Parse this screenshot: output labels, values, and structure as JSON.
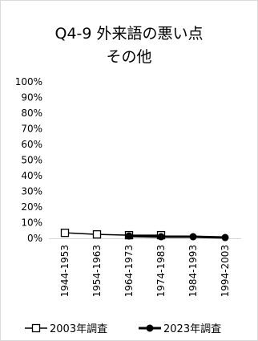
{
  "chart_data": {
    "type": "line",
    "title_lines": [
      "Q4-9 外来語の悪い点",
      "その他"
    ],
    "categories": [
      "1944-1953",
      "1954-1963",
      "1964-1973",
      "1974-1983",
      "1984-1993",
      "1994-2003"
    ],
    "y_ticks": [
      "100%",
      "90%",
      "80%",
      "70%",
      "60%",
      "50%",
      "40%",
      "30%",
      "20%",
      "10%",
      "0%"
    ],
    "ylim": [
      0,
      100
    ],
    "grid": false,
    "legend_position": "bottom",
    "series": [
      {
        "name": "2003年調査",
        "marker": "square-open",
        "color": "#000000",
        "values": [
          3.5,
          2.5,
          2.0,
          2.0,
          null,
          null
        ]
      },
      {
        "name": "2023年調査",
        "marker": "circle-filled",
        "color": "#000000",
        "values": [
          null,
          null,
          1.5,
          1.0,
          1.0,
          0.5
        ]
      }
    ]
  }
}
